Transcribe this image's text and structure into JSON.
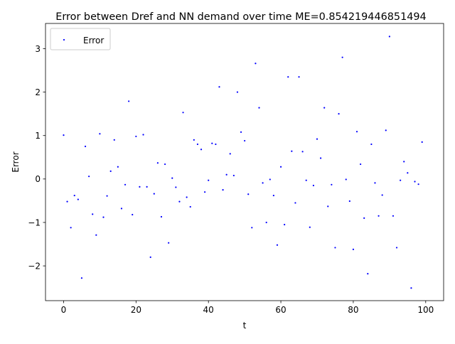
{
  "chart_data": {
    "type": "scatter",
    "title": "Error between Dref and NN demand over time ME=0.854219446851494",
    "xlabel": "t",
    "ylabel": "Error",
    "xlim": [
      -5,
      104.95
    ],
    "ylim": [
      -2.8,
      3.58
    ],
    "xticks": [
      0,
      20,
      40,
      60,
      80,
      100
    ],
    "xtick_labels": [
      "0",
      "20",
      "40",
      "60",
      "80",
      "100"
    ],
    "yticks": [
      -2,
      -1,
      0,
      1,
      2,
      3
    ],
    "ytick_labels": [
      "−2",
      "−1",
      "0",
      "1",
      "2",
      "3"
    ],
    "grid": false,
    "legend_position": "top-left",
    "marker_color": "#0000ff",
    "series": [
      {
        "name": "Error",
        "x": [
          0,
          1,
          2,
          3,
          4,
          5,
          6,
          7,
          8,
          9,
          10,
          11,
          12,
          13,
          14,
          15,
          16,
          17,
          18,
          19,
          20,
          21,
          22,
          23,
          24,
          25,
          26,
          27,
          28,
          29,
          30,
          31,
          32,
          33,
          34,
          35,
          36,
          37,
          38,
          39,
          40,
          41,
          42,
          43,
          44,
          45,
          46,
          47,
          48,
          49,
          50,
          51,
          52,
          53,
          54,
          55,
          56,
          57,
          58,
          59,
          60,
          61,
          62,
          63,
          64,
          65,
          66,
          67,
          68,
          69,
          70,
          71,
          72,
          73,
          74,
          75,
          76,
          77,
          78,
          79,
          80,
          81,
          82,
          83,
          84,
          85,
          86,
          87,
          88,
          89,
          90,
          91,
          92,
          93,
          94,
          95,
          96,
          97,
          98,
          99
        ],
        "y": [
          1.01,
          -0.52,
          -1.12,
          -0.38,
          -0.47,
          -2.28,
          0.75,
          0.06,
          -0.81,
          -1.29,
          1.04,
          -0.88,
          -0.39,
          0.18,
          0.9,
          0.28,
          -0.68,
          -0.13,
          1.79,
          -0.82,
          0.98,
          -0.18,
          1.02,
          -0.18,
          -1.8,
          -0.34,
          0.37,
          -0.87,
          0.34,
          -1.47,
          0.02,
          -0.19,
          -0.52,
          1.53,
          -0.42,
          -0.64,
          0.9,
          0.8,
          0.68,
          -0.3,
          -0.03,
          0.82,
          0.8,
          2.12,
          -0.25,
          0.1,
          0.58,
          0.08,
          2.0,
          1.08,
          0.88,
          -0.35,
          -1.12,
          2.66,
          1.64,
          -0.09,
          -1.0,
          -0.01,
          -0.38,
          -1.52,
          0.28,
          -1.05,
          2.35,
          0.64,
          -0.55,
          2.35,
          0.63,
          -0.03,
          -1.11,
          -0.15,
          0.92,
          0.48,
          1.64,
          -0.63,
          -0.13,
          -1.58,
          1.5,
          2.8,
          -0.01,
          -0.51,
          -1.62,
          1.09,
          0.34,
          -0.9,
          -2.18,
          0.8,
          -0.09,
          -0.85,
          -0.37,
          1.12,
          3.28,
          -0.85,
          -1.58,
          -0.03,
          0.4,
          0.14,
          -2.51,
          -0.06,
          -0.12,
          0.85
        ]
      }
    ]
  }
}
